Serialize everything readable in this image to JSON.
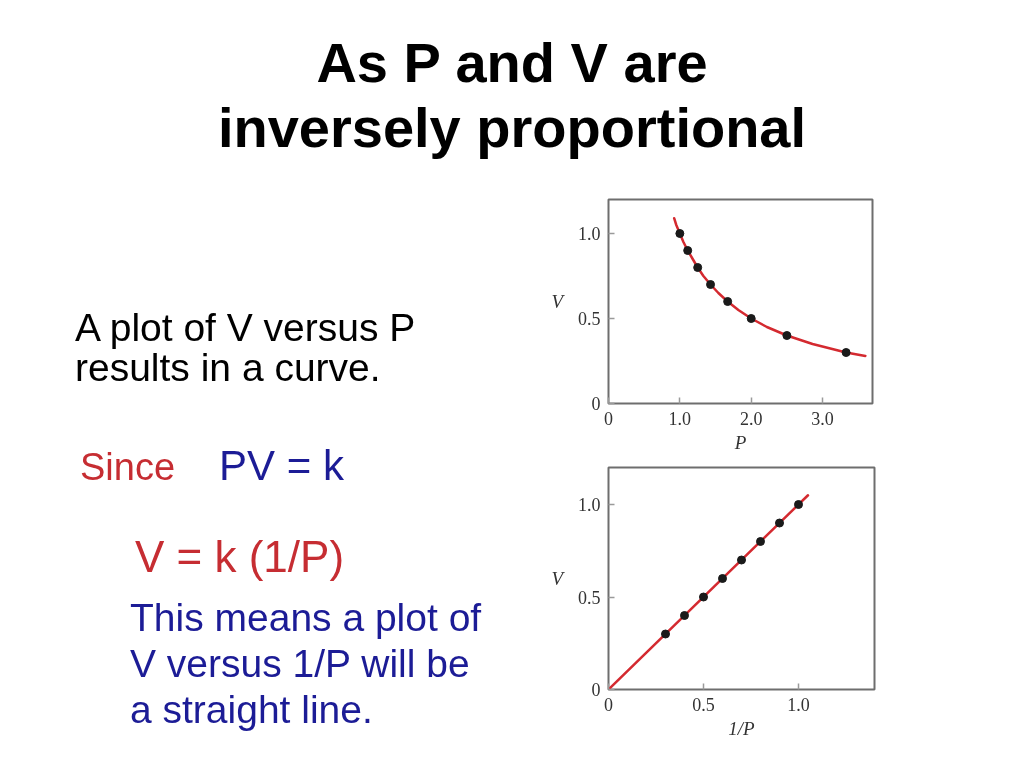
{
  "chart_data": [
    {
      "type": "other",
      "title": "As P and V are inversely proportional",
      "annotations": [
        "A plot of V versus P results in a curve.",
        "Since",
        "PV = k",
        "V = k (1/P)",
        "This means a plot of V versus 1/P will be a straight line."
      ]
    },
    {
      "type": "scatter",
      "xlabel": "P",
      "ylabel": "V",
      "xlim": [
        0,
        3.7
      ],
      "ylim": [
        0,
        1.2
      ],
      "xticks": [
        0,
        {
          "value": 1,
          "label": "1.0"
        },
        {
          "value": 2,
          "label": "2.0"
        },
        {
          "value": 3,
          "label": "3.0"
        }
      ],
      "yticks": [
        0,
        0.5,
        {
          "value": 1,
          "label": "1.0"
        }
      ],
      "series": [
        {
          "type": "line",
          "color": "#d42a30",
          "x": [
            0.92,
            0.95,
            1.0,
            1.05,
            1.11,
            1.18,
            1.25,
            1.33,
            1.43,
            1.54,
            1.67,
            1.82,
            2.0,
            2.22,
            2.5,
            2.86,
            3.33,
            3.6
          ],
          "values": [
            1.09,
            1.05,
            1.0,
            0.95,
            0.9,
            0.85,
            0.8,
            0.75,
            0.7,
            0.65,
            0.6,
            0.55,
            0.5,
            0.45,
            0.4,
            0.35,
            0.3,
            0.28
          ]
        },
        {
          "type": "scatter",
          "marker": "circle",
          "color": "#1a1a1a",
          "x": [
            1.0,
            1.11,
            1.25,
            1.43,
            1.67,
            2.0,
            2.5,
            3.33
          ],
          "values": [
            1.0,
            0.9,
            0.8,
            0.7,
            0.6,
            0.5,
            0.4,
            0.3
          ]
        }
      ]
    },
    {
      "type": "scatter",
      "xlabel": "1/P",
      "ylabel": "V",
      "xlim": [
        0,
        1.4
      ],
      "ylim": [
        0,
        1.2
      ],
      "xticks": [
        0,
        0.5,
        {
          "value": 1,
          "label": "1.0"
        }
      ],
      "yticks": [
        0,
        0.5,
        {
          "value": 1,
          "label": "1.0"
        }
      ],
      "series": [
        {
          "type": "line",
          "color": "#d42a30",
          "x": [
            0,
            1.05
          ],
          "values": [
            0,
            1.05
          ]
        },
        {
          "type": "scatter",
          "marker": "circle",
          "color": "#1a1a1a",
          "x": [
            0.3,
            0.4,
            0.5,
            0.6,
            0.7,
            0.8,
            0.9,
            1.0
          ],
          "values": [
            0.3,
            0.4,
            0.5,
            0.6,
            0.7,
            0.8,
            0.9,
            1.0
          ]
        }
      ]
    }
  ]
}
